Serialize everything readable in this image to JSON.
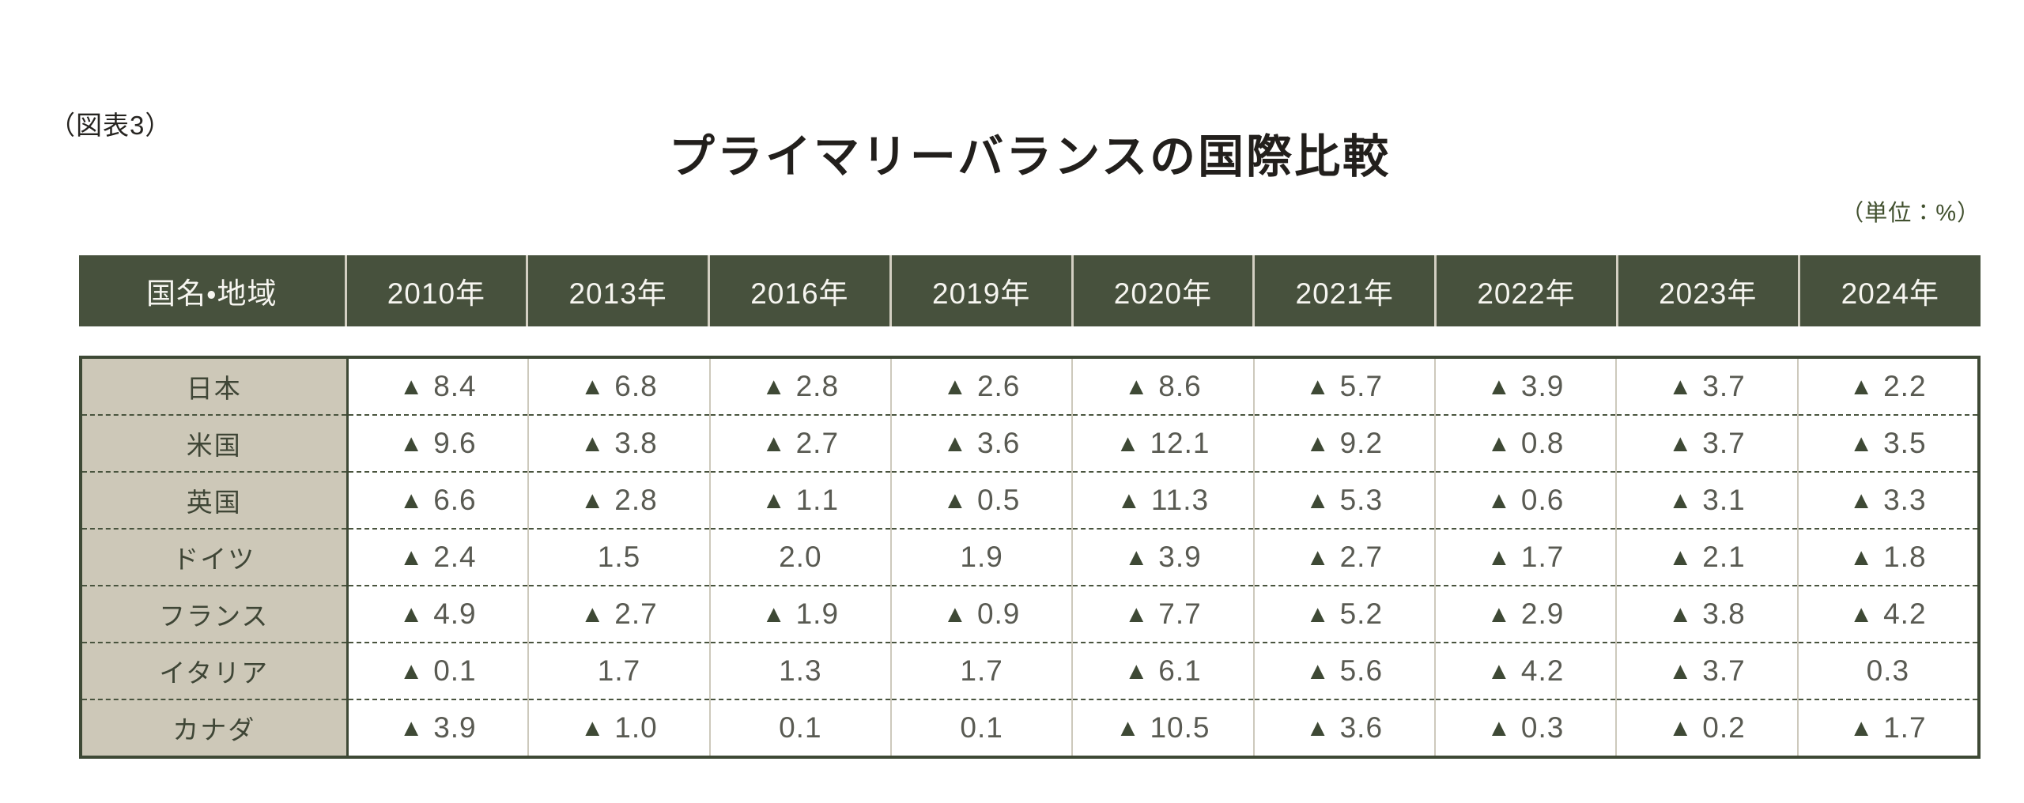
{
  "page": {
    "figure_label": "（図表3）",
    "title": "プライマリーバランスの国際比較",
    "unit_note": "（単位：%）"
  },
  "colors": {
    "header_background": "#47513d",
    "header_text": "#f6f5f0",
    "country_column_background": "#cdc8b8",
    "table_border": "#3e4935",
    "row_dash_separator": "#49543e",
    "column_separator_light": "#cdc9bc",
    "value_text": "#595a52",
    "negative_marker": "#3e4935",
    "title_text": "#221f1c",
    "unit_note_text": "#41502e"
  },
  "chart_data": {
    "type": "table",
    "title": "プライマリーバランスの国際比較",
    "figure_label": "（図表3）",
    "unit": "%",
    "negative_marker": "▲",
    "columns": [
      "国名・地域",
      "2010年",
      "2013年",
      "2016年",
      "2019年",
      "2020年",
      "2021年",
      "2022年",
      "2023年",
      "2024年"
    ],
    "rows": [
      {
        "country": "日本",
        "values": [
          "▲8.4",
          "▲6.8",
          "▲2.8",
          "▲2.6",
          "▲8.6",
          "▲5.7",
          "▲3.9",
          "▲3.7",
          "▲2.2"
        ]
      },
      {
        "country": "米国",
        "values": [
          "▲9.6",
          "▲3.8",
          "▲2.7",
          "▲3.6",
          "▲12.1",
          "▲9.2",
          "▲0.8",
          "▲3.7",
          "▲3.5"
        ]
      },
      {
        "country": "英国",
        "values": [
          "▲6.6",
          "▲2.8",
          "▲1.1",
          "▲0.5",
          "▲11.3",
          "▲5.3",
          "▲0.6",
          "▲3.1",
          "▲3.3"
        ]
      },
      {
        "country": "ドイツ",
        "values": [
          "▲2.4",
          "1.5",
          "2.0",
          "1.9",
          "▲3.9",
          "▲2.7",
          "▲1.7",
          "▲2.1",
          "▲1.8"
        ]
      },
      {
        "country": "フランス",
        "values": [
          "▲4.9",
          "▲2.7",
          "▲1.9",
          "▲0.9",
          "▲7.7",
          "▲5.2",
          "▲2.9",
          "▲3.8",
          "▲4.2"
        ]
      },
      {
        "country": "イタリア",
        "values": [
          "▲0.1",
          "1.7",
          "1.3",
          "1.7",
          "▲6.1",
          "▲5.6",
          "▲4.2",
          "▲3.7",
          "0.3"
        ]
      },
      {
        "country": "カナダ",
        "values": [
          "▲3.9",
          "▲1.0",
          "0.1",
          "0.1",
          "▲10.5",
          "▲3.6",
          "▲0.3",
          "▲0.2",
          "▲1.7"
        ]
      }
    ]
  }
}
